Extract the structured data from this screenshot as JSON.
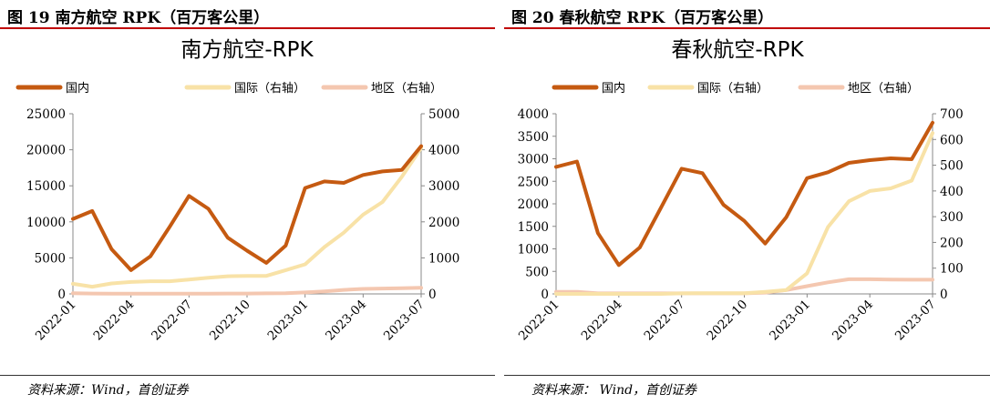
{
  "panels": [
    {
      "fig_title": "图 19 南方航空 RPK（百万客公里）",
      "source": "资料来源：Wind，首创证券",
      "chart_data": {
        "type": "line",
        "title": "南方航空-RPK",
        "legend_position": "top",
        "grid": false,
        "x": [
          "2022-01",
          "2022-02",
          "2022-03",
          "2022-04",
          "2022-05",
          "2022-06",
          "2022-07",
          "2022-08",
          "2022-09",
          "2022-10",
          "2022-11",
          "2022-12",
          "2023-01",
          "2023-02",
          "2023-03",
          "2023-04",
          "2023-05",
          "2023-06",
          "2023-07"
        ],
        "x_tick_labels": [
          "2022-01",
          "2022-04",
          "2022-07",
          "2022-10",
          "2023-01",
          "2023-04",
          "2023-07"
        ],
        "y_left": {
          "min": 0,
          "max": 25000,
          "ticks": [
            "0",
            "5000",
            "10000",
            "15000",
            "20000",
            "25000"
          ]
        },
        "y_right": {
          "min": 0,
          "max": 5000,
          "ticks": [
            "0",
            "1000",
            "2000",
            "3000",
            "4000",
            "5000"
          ]
        },
        "series": [
          {
            "name": "国内",
            "axis": "left",
            "color": "#c55a11",
            "values": [
              10400,
              11500,
              6200,
              3300,
              5200,
              9300,
              13600,
              11800,
              7800,
              6000,
              4300,
              6700,
              14700,
              15600,
              15400,
              16500,
              17000,
              17200,
              20500
            ]
          },
          {
            "name": "国际（右轴）",
            "axis": "right",
            "color": "#f8e2a7",
            "values": [
              280,
              200,
              290,
              330,
              350,
              350,
              400,
              450,
              490,
              500,
              500,
              660,
              820,
              1300,
              1700,
              2200,
              2550,
              3250,
              4050
            ]
          },
          {
            "name": "地区（右轴）",
            "axis": "right",
            "color": "#f4c7b0",
            "values": [
              20,
              10,
              5,
              5,
              5,
              5,
              5,
              5,
              10,
              10,
              15,
              20,
              40,
              70,
              110,
              140,
              150,
              160,
              170
            ]
          }
        ]
      }
    },
    {
      "fig_title": "图 20 春秋航空 RPK（百万客公里）",
      "source": "资料来源： Wind，首创证券",
      "chart_data": {
        "type": "line",
        "title": "春秋航空-RPK",
        "legend_position": "top",
        "grid": false,
        "x": [
          "2022-01",
          "2022-02",
          "2022-03",
          "2022-04",
          "2022-05",
          "2022-06",
          "2022-07",
          "2022-08",
          "2022-09",
          "2022-10",
          "2022-11",
          "2022-12",
          "2023-01",
          "2023-02",
          "2023-03",
          "2023-04",
          "2023-05",
          "2023-06",
          "2023-07"
        ],
        "x_tick_labels": [
          "2022-01",
          "2022-04",
          "2022-07",
          "2022-10",
          "2023-01",
          "2023-04",
          "2023-07"
        ],
        "y_left": {
          "min": 0,
          "max": 4000,
          "ticks": [
            "0",
            "500",
            "1000",
            "1500",
            "2000",
            "2500",
            "3000",
            "3500",
            "4000"
          ]
        },
        "y_right": {
          "min": 0,
          "max": 700,
          "ticks": [
            "0",
            "100",
            "200",
            "300",
            "400",
            "500",
            "600",
            "700"
          ]
        },
        "series": [
          {
            "name": "国内",
            "axis": "left",
            "color": "#c55a11",
            "values": [
              2820,
              2940,
              1350,
              640,
              1030,
              1900,
              2780,
              2680,
              1980,
              1620,
              1120,
              1700,
              2570,
              2700,
              2910,
              2970,
              3010,
              2990,
              3800
            ]
          },
          {
            "name": "国际（右轴）",
            "axis": "right",
            "color": "#f8e2a7",
            "values": [
              0,
              0,
              0,
              0,
              0,
              0,
              2,
              3,
              3,
              3,
              8,
              15,
              80,
              260,
              360,
              400,
              410,
              440,
              625
            ]
          },
          {
            "name": "地区（右轴）",
            "axis": "right",
            "color": "#f4c7b0",
            "values": [
              8,
              8,
              2,
              2,
              2,
              2,
              2,
              2,
              2,
              2,
              5,
              15,
              30,
              45,
              57,
              57,
              56,
              55,
              55
            ]
          }
        ]
      }
    }
  ]
}
